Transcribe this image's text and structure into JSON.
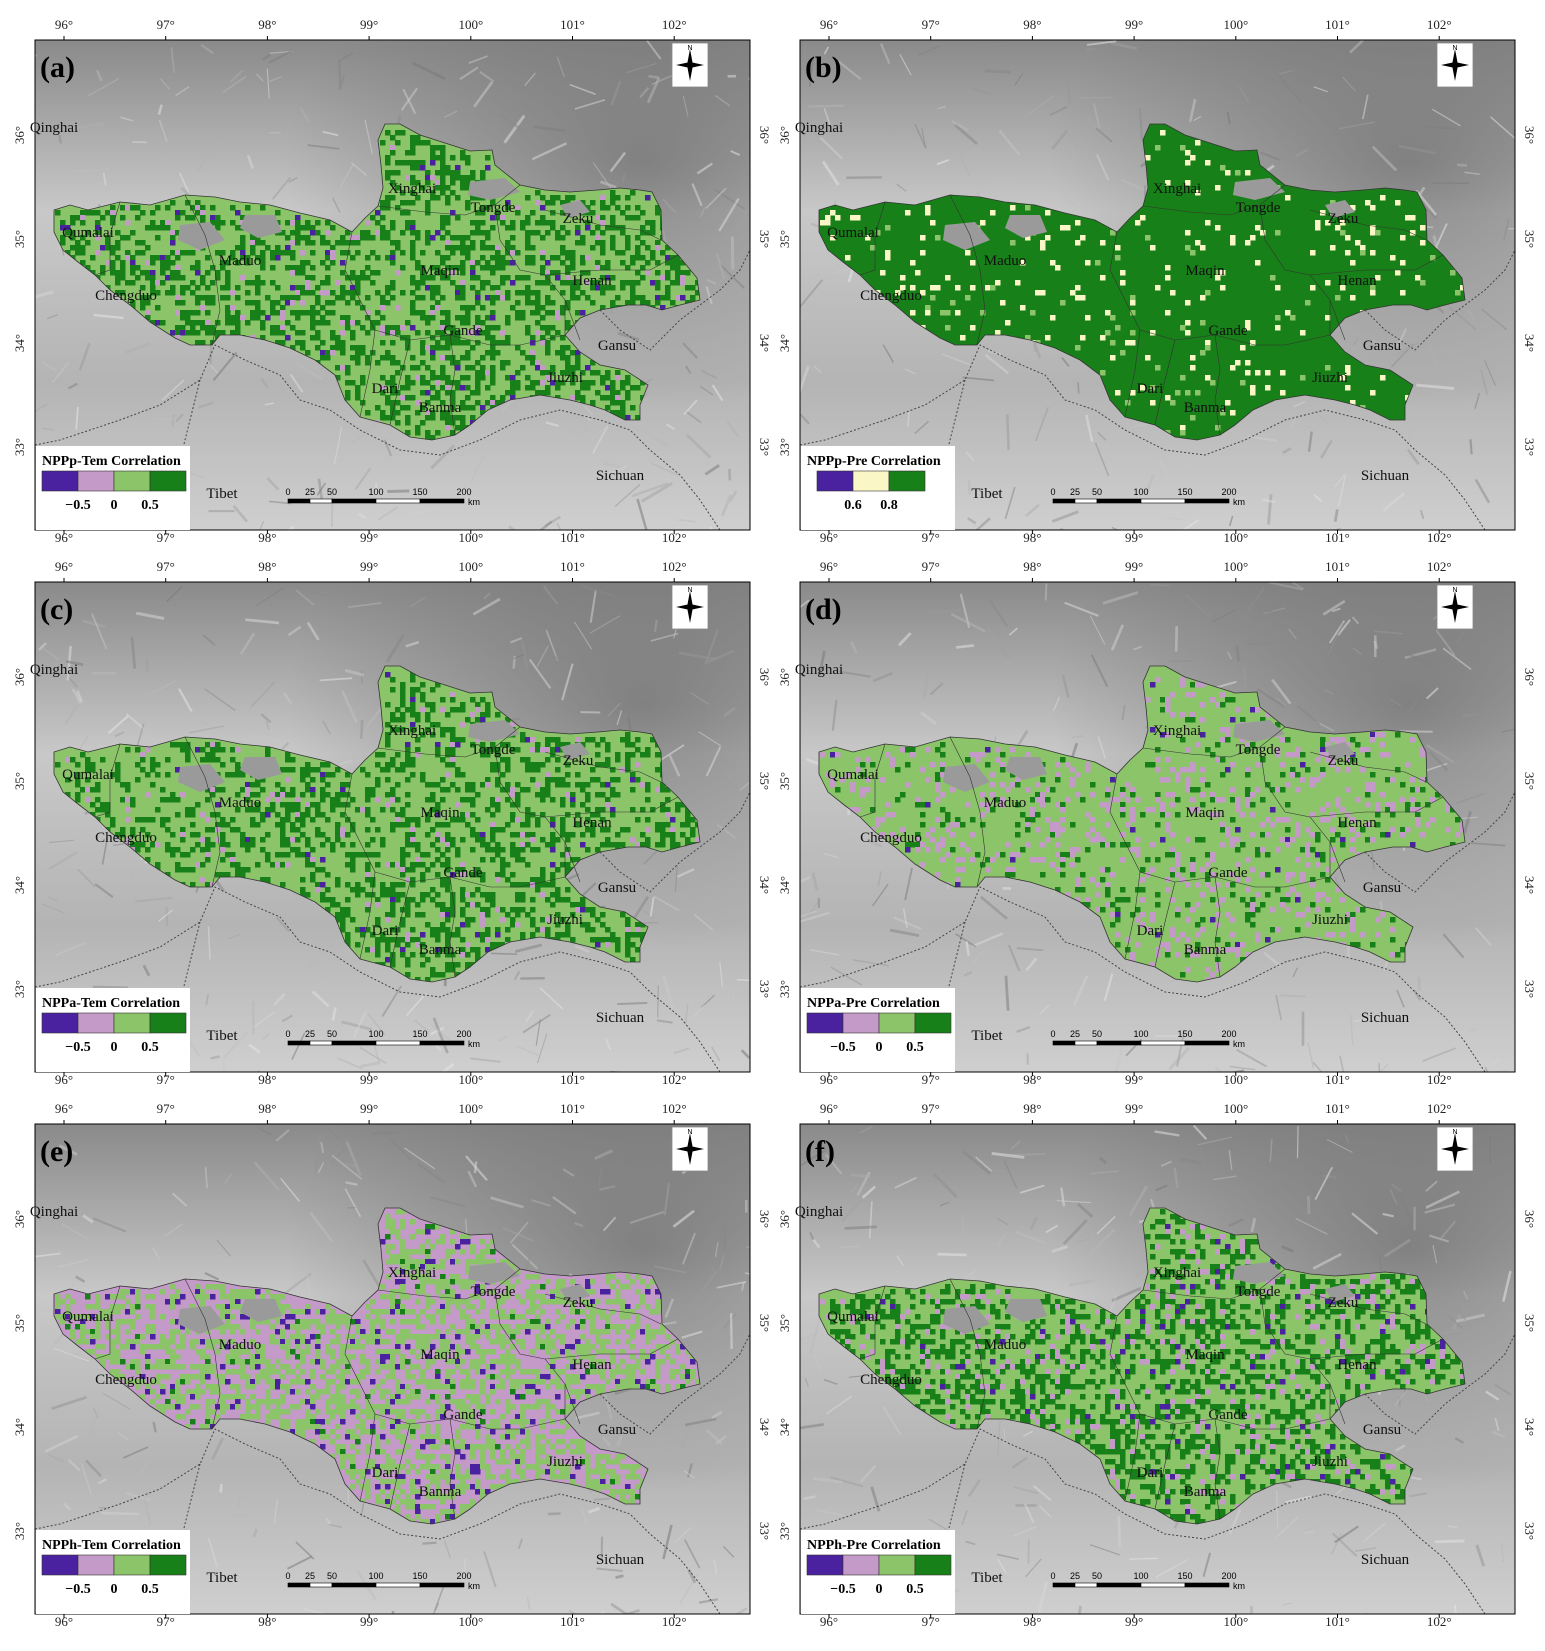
{
  "figure": {
    "top_ticks": [
      "96°",
      "97°",
      "98°",
      "99°",
      "100°",
      "101°",
      "102°"
    ],
    "side_ticks": [
      "36°",
      "35°",
      "34°",
      "33°"
    ],
    "scale_labels": [
      "0",
      "25",
      "50",
      "100",
      "150",
      "200"
    ],
    "scale_unit": "km",
    "region_places": [
      {
        "name": "Xinghai"
      },
      {
        "name": "Tongde"
      },
      {
        "name": "Zeku"
      },
      {
        "name": "Qumalai"
      },
      {
        "name": "Maduo"
      },
      {
        "name": "Maqin"
      },
      {
        "name": "Henan"
      },
      {
        "name": "Chengduo"
      },
      {
        "name": "Gande"
      },
      {
        "name": "Jiuzhi"
      },
      {
        "name": "Dari"
      },
      {
        "name": "Banma"
      }
    ],
    "province_places": [
      {
        "name": "Qinghai"
      },
      {
        "name": "Gansu"
      },
      {
        "name": "Sichuan"
      },
      {
        "name": "Tibet"
      }
    ],
    "palette": {
      "dark_purple": "#4a22a0",
      "light_purple": "#c49ac8",
      "light_green": "#8cc46a",
      "dark_green": "#188018",
      "cream": "#fbf6c6",
      "water": "#9a9a9a"
    }
  },
  "panels": [
    {
      "letter": "(a)",
      "legend_title": "NPPp-Tem Correlation",
      "legend_values": [
        "−0.5",
        "0",
        "0.5"
      ],
      "legend_colors": [
        "#4a22a0",
        "#c49ac8",
        "#8cc46a",
        "#188018"
      ],
      "fill_mix": {
        "dark_green": 0.35,
        "light_green": 0.6,
        "light_purple": 0.03,
        "dark_purple": 0.02
      }
    },
    {
      "letter": "(b)",
      "legend_title": "NPPp-Pre Correlation",
      "legend_values": [
        "0.6",
        "0.8"
      ],
      "legend_colors": [
        "#4a22a0",
        "#fbf6c6",
        "#188018"
      ],
      "fill_mix": {
        "dark_green": 0.93,
        "cream": 0.05,
        "light_green": 0.02
      }
    },
    {
      "letter": "(c)",
      "legend_title": "NPPa-Tem Correlation",
      "legend_values": [
        "−0.5",
        "0",
        "0.5"
      ],
      "legend_colors": [
        "#4a22a0",
        "#c49ac8",
        "#8cc46a",
        "#188018"
      ],
      "fill_mix": {
        "dark_green": 0.3,
        "light_green": 0.66,
        "light_purple": 0.03,
        "dark_purple": 0.01
      }
    },
    {
      "letter": "(d)",
      "legend_title": "NPPa-Pre Correlation",
      "legend_values": [
        "−0.5",
        "0",
        "0.5"
      ],
      "legend_colors": [
        "#4a22a0",
        "#c49ac8",
        "#8cc46a",
        "#188018"
      ],
      "fill_mix": {
        "dark_green": 0.06,
        "light_green": 0.8,
        "light_purple": 0.13,
        "dark_purple": 0.01
      }
    },
    {
      "letter": "(e)",
      "legend_title": "NPPh-Tem Correlation",
      "legend_values": [
        "−0.5",
        "0",
        "0.5"
      ],
      "legend_colors": [
        "#4a22a0",
        "#c49ac8",
        "#8cc46a",
        "#188018"
      ],
      "fill_mix": {
        "dark_green": 0.02,
        "light_green": 0.43,
        "light_purple": 0.5,
        "dark_purple": 0.05
      }
    },
    {
      "letter": "(f)",
      "legend_title": "NPPh-Pre Correlation",
      "legend_values": [
        "−0.5",
        "0",
        "0.5"
      ],
      "legend_colors": [
        "#4a22a0",
        "#c49ac8",
        "#8cc46a",
        "#188018"
      ],
      "fill_mix": {
        "dark_green": 0.3,
        "light_green": 0.6,
        "light_purple": 0.08,
        "dark_purple": 0.02
      }
    }
  ]
}
